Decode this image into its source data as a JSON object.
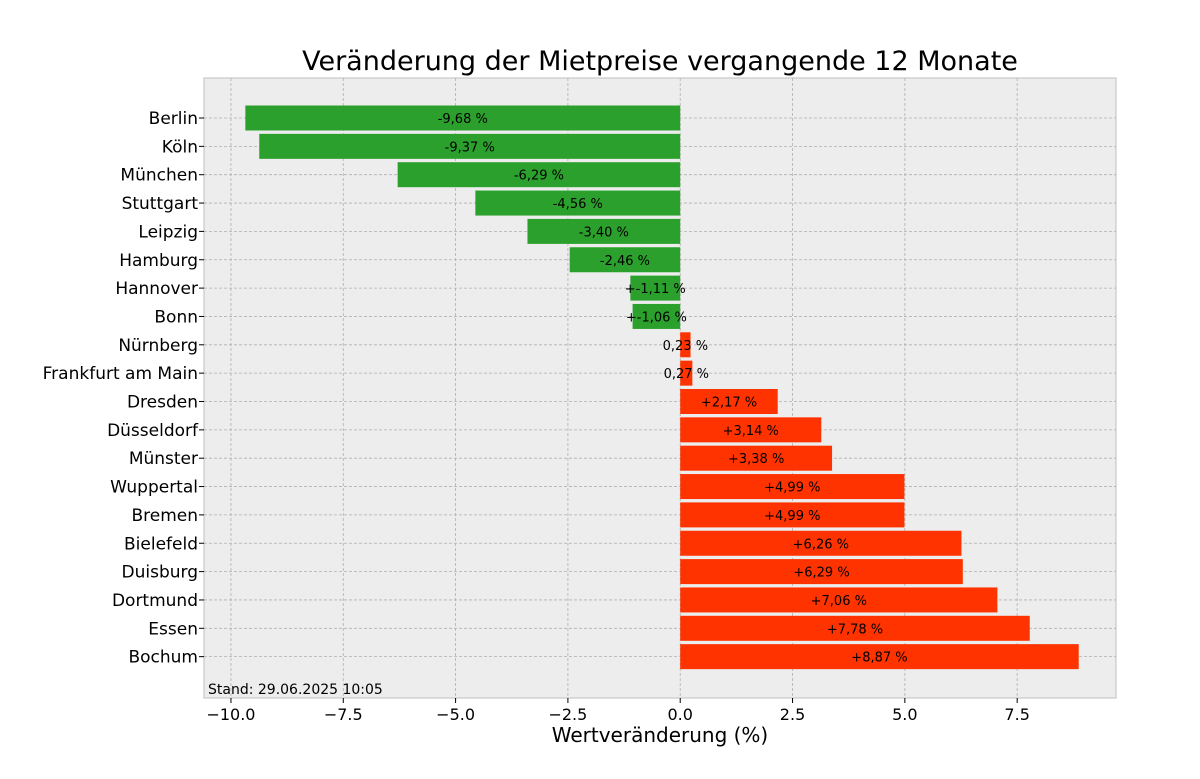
{
  "chart_data": {
    "type": "bar",
    "orientation": "horizontal",
    "title": "Veränderung der Mietpreise vergangende 12 Monate",
    "xlabel": "Wertveränderung (%)",
    "ylabel": "",
    "xlim": [
      -10.6,
      9.7
    ],
    "x_ticks": [
      -10.0,
      -7.5,
      -5.0,
      -2.5,
      0.0,
      2.5,
      5.0,
      7.5
    ],
    "x_tick_labels": [
      "−10.0",
      "−7.5",
      "−5.0",
      "−2.5",
      "0.0",
      "2.5",
      "5.0",
      "7.5"
    ],
    "grid": true,
    "footnote": "Stand: 29.06.2025 10:05",
    "colors": {
      "negative": "#2ca02c",
      "positive": "#ff3300",
      "background": "#ededed",
      "grid": "#b0b0b0"
    },
    "categories": [
      "Berlin",
      "Köln",
      "München",
      "Stuttgart",
      "Leipzig",
      "Hamburg",
      "Hannover",
      "Bonn",
      "Nürnberg",
      "Frankfurt am Main",
      "Dresden",
      "Düsseldorf",
      "Münster",
      "Wuppertal",
      "Bremen",
      "Bielefeld",
      "Duisburg",
      "Dortmund",
      "Essen",
      "Bochum"
    ],
    "values": [
      -9.68,
      -9.37,
      -6.29,
      -4.56,
      -3.4,
      -2.46,
      -1.11,
      -1.06,
      0.23,
      0.27,
      2.17,
      3.14,
      3.38,
      4.99,
      4.99,
      6.26,
      6.29,
      7.06,
      7.78,
      8.87
    ],
    "data_labels": [
      "-9,68 %",
      "-9,37 %",
      "-6,29 %",
      "-4,56 %",
      "-3,40 %",
      "-2,46 %",
      "+-1,11 %",
      "+-1,06 %",
      "0,23 %",
      "0,27 %",
      "+2,17 %",
      "+3,14 %",
      "+3,38 %",
      "+4,99 %",
      "+4,99 %",
      "+6,26 %",
      "+6,29 %",
      "+7,06 %",
      "+7,78 %",
      "+8,87 %"
    ]
  }
}
